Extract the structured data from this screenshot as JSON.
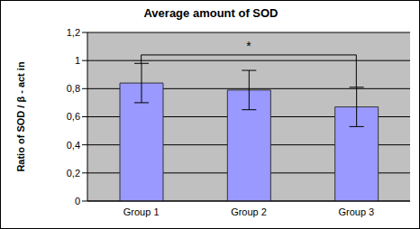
{
  "chart_data": {
    "type": "bar",
    "title": "Average amount of SOD",
    "y_label": "Ratio of SOD / β - act in",
    "categories": [
      "Group 1",
      "Group 2",
      "Group 3"
    ],
    "values": [
      0.84,
      0.79,
      0.67
    ],
    "errors": [
      0.14,
      0.14,
      0.14
    ],
    "color": "#9999ff",
    "ylim": [
      0,
      1.2
    ],
    "yticks": [
      0,
      {
        "value": 0.2,
        "label": "0,2"
      },
      {
        "value": 0.4,
        "label": "0,4"
      },
      {
        "value": 0.6,
        "label": "0,6"
      },
      {
        "value": 0.8,
        "label": "0,8"
      },
      1,
      {
        "value": 1.2,
        "label": "1,2"
      }
    ],
    "grid": true,
    "annotations": [
      {
        "text": "*",
        "between": [
          "Group 1",
          "Group 3"
        ],
        "y": 1.04
      }
    ]
  }
}
